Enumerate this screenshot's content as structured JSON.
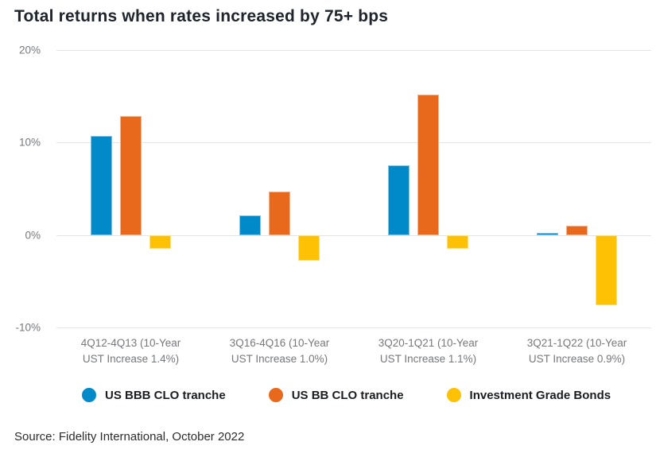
{
  "title": "Total returns when rates increased by 75+ bps",
  "source": "Source: Fidelity International, October 2022",
  "colors": {
    "series_blue": "#008ac9",
    "series_orange": "#e8691b",
    "series_yellow": "#fec103",
    "gridline": "#e3e4e6",
    "axis_text": "#76787b",
    "title_text": "#20242d",
    "legend_text": "#1b1d21",
    "source_text": "#2c2c2c",
    "background": "#ffffff"
  },
  "chart_data": {
    "type": "bar",
    "title": "Total returns when rates increased by 75+ bps",
    "categories": [
      "4Q12-4Q13 (10-Year UST Increase 1.4%)",
      "3Q16-4Q16 (10-Year UST Increase 1.0%)",
      "3Q20-1Q21 (10-Year UST Increase 1.1%)",
      "3Q21-1Q22 (10-Year UST Increase 0.9%)"
    ],
    "series": [
      {
        "name": "US BBB CLO tranche",
        "color": "#008ac9",
        "values": [
          10.7,
          2.1,
          7.5,
          0.2
        ]
      },
      {
        "name": "US BB CLO tranche",
        "color": "#e8691b",
        "values": [
          12.9,
          4.7,
          15.2,
          1.0
        ]
      },
      {
        "name": "Investment Grade Bonds",
        "color": "#fec103",
        "values": [
          -1.5,
          -2.8,
          -1.5,
          -7.6
        ]
      }
    ],
    "xlabel": "",
    "ylabel": "",
    "ylim": [
      -10,
      20
    ],
    "yticks": [
      "20%",
      "10%",
      "0%",
      "-10%"
    ],
    "grid": "horizontal",
    "legend_position": "bottom",
    "source": "Source: Fidelity International, October 2022"
  }
}
